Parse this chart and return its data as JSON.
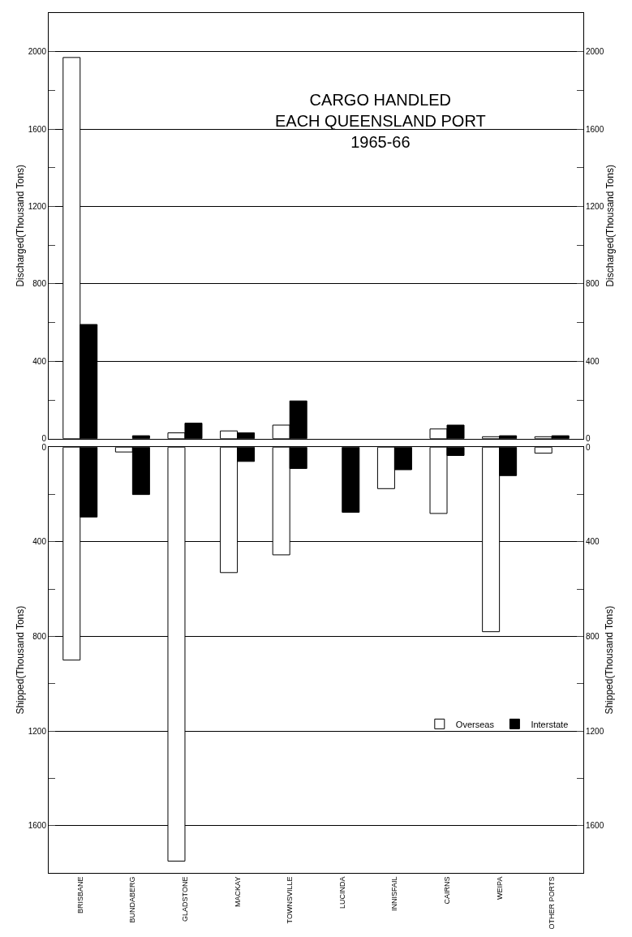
{
  "chart_data": [
    {
      "type": "bar",
      "title": "CARGO HANDLED\nEACH QUEENSLAND PORT\n1965-66",
      "ylabel": "Discharged(Thousand Tons)",
      "y2label": "Discharged(Thousand Tons)",
      "categories": [
        null,
        null,
        null,
        null,
        null,
        null,
        null,
        null,
        null,
        null
      ],
      "series": [
        {
          "color": "#ffffff",
          "values": [
            1970,
            null,
            30,
            40,
            70,
            null,
            null,
            50,
            10,
            10
          ]
        },
        {
          "color": "#000000",
          "values": [
            590,
            15,
            80,
            30,
            195,
            null,
            null,
            70,
            15,
            15
          ]
        }
      ],
      "ylim": [
        0,
        2200
      ],
      "y2lim": [
        0,
        2200
      ],
      "yticks": [
        0,
        {
          "value": 200,
          "label": null
        },
        400,
        {
          "value": 600,
          "label": null
        },
        800,
        {
          "value": 1000,
          "label": null
        },
        1200,
        {
          "value": 1400,
          "label": null
        },
        1600,
        {
          "value": 1800,
          "label": null
        },
        2000
      ],
      "y2ticks": [
        0,
        {
          "value": 200,
          "label": null
        },
        400,
        {
          "value": 600,
          "label": null
        },
        800,
        {
          "value": 1000,
          "label": null
        },
        1200,
        {
          "value": 1400,
          "label": null
        },
        1600,
        {
          "value": 1800,
          "label": null
        },
        2000
      ],
      "grid": "y",
      "tick_labels": "y",
      "legend": false
    },
    {
      "type": "bar",
      "ylabel": "Shipped(Thousand Tons)",
      "y2label": "Shipped(Thousand Tons)",
      "categories": [
        "BRISBANE",
        "BUNDABERG",
        "GLADSTONE",
        "MACKAY",
        "TOWNSVILLE",
        "LUCINDA",
        "INNISFAIL",
        "CAIRNS",
        "WEIPA",
        "OTHER PORTS"
      ],
      "series": [
        {
          "name": "Overseas",
          "color": "#ffffff",
          "values": [
            900,
            20,
            1750,
            530,
            455,
            null,
            175,
            280,
            780,
            25
          ]
        },
        {
          "name": "Interstate",
          "color": "#000000",
          "values": [
            295,
            200,
            null,
            60,
            90,
            275,
            95,
            35,
            120,
            null
          ]
        }
      ],
      "ylim": [
        1800,
        0
      ],
      "y2lim": [
        1800,
        0
      ],
      "yticks": [
        0,
        {
          "value": 200,
          "label": null
        },
        400,
        {
          "value": 600,
          "label": null
        },
        800,
        {
          "value": 1000,
          "label": null
        },
        1200,
        {
          "value": 1400,
          "label": null
        },
        1600,
        {
          "value": 1800,
          "label": null
        }
      ],
      "y2ticks": [
        0,
        {
          "value": 200,
          "label": null
        },
        400,
        {
          "value": 600,
          "label": null
        },
        800,
        {
          "value": 1000,
          "label": null
        },
        1200,
        {
          "value": 1400,
          "label": null
        },
        1600,
        {
          "value": 1800,
          "label": null
        }
      ],
      "grid": "y",
      "legend": "right"
    }
  ]
}
